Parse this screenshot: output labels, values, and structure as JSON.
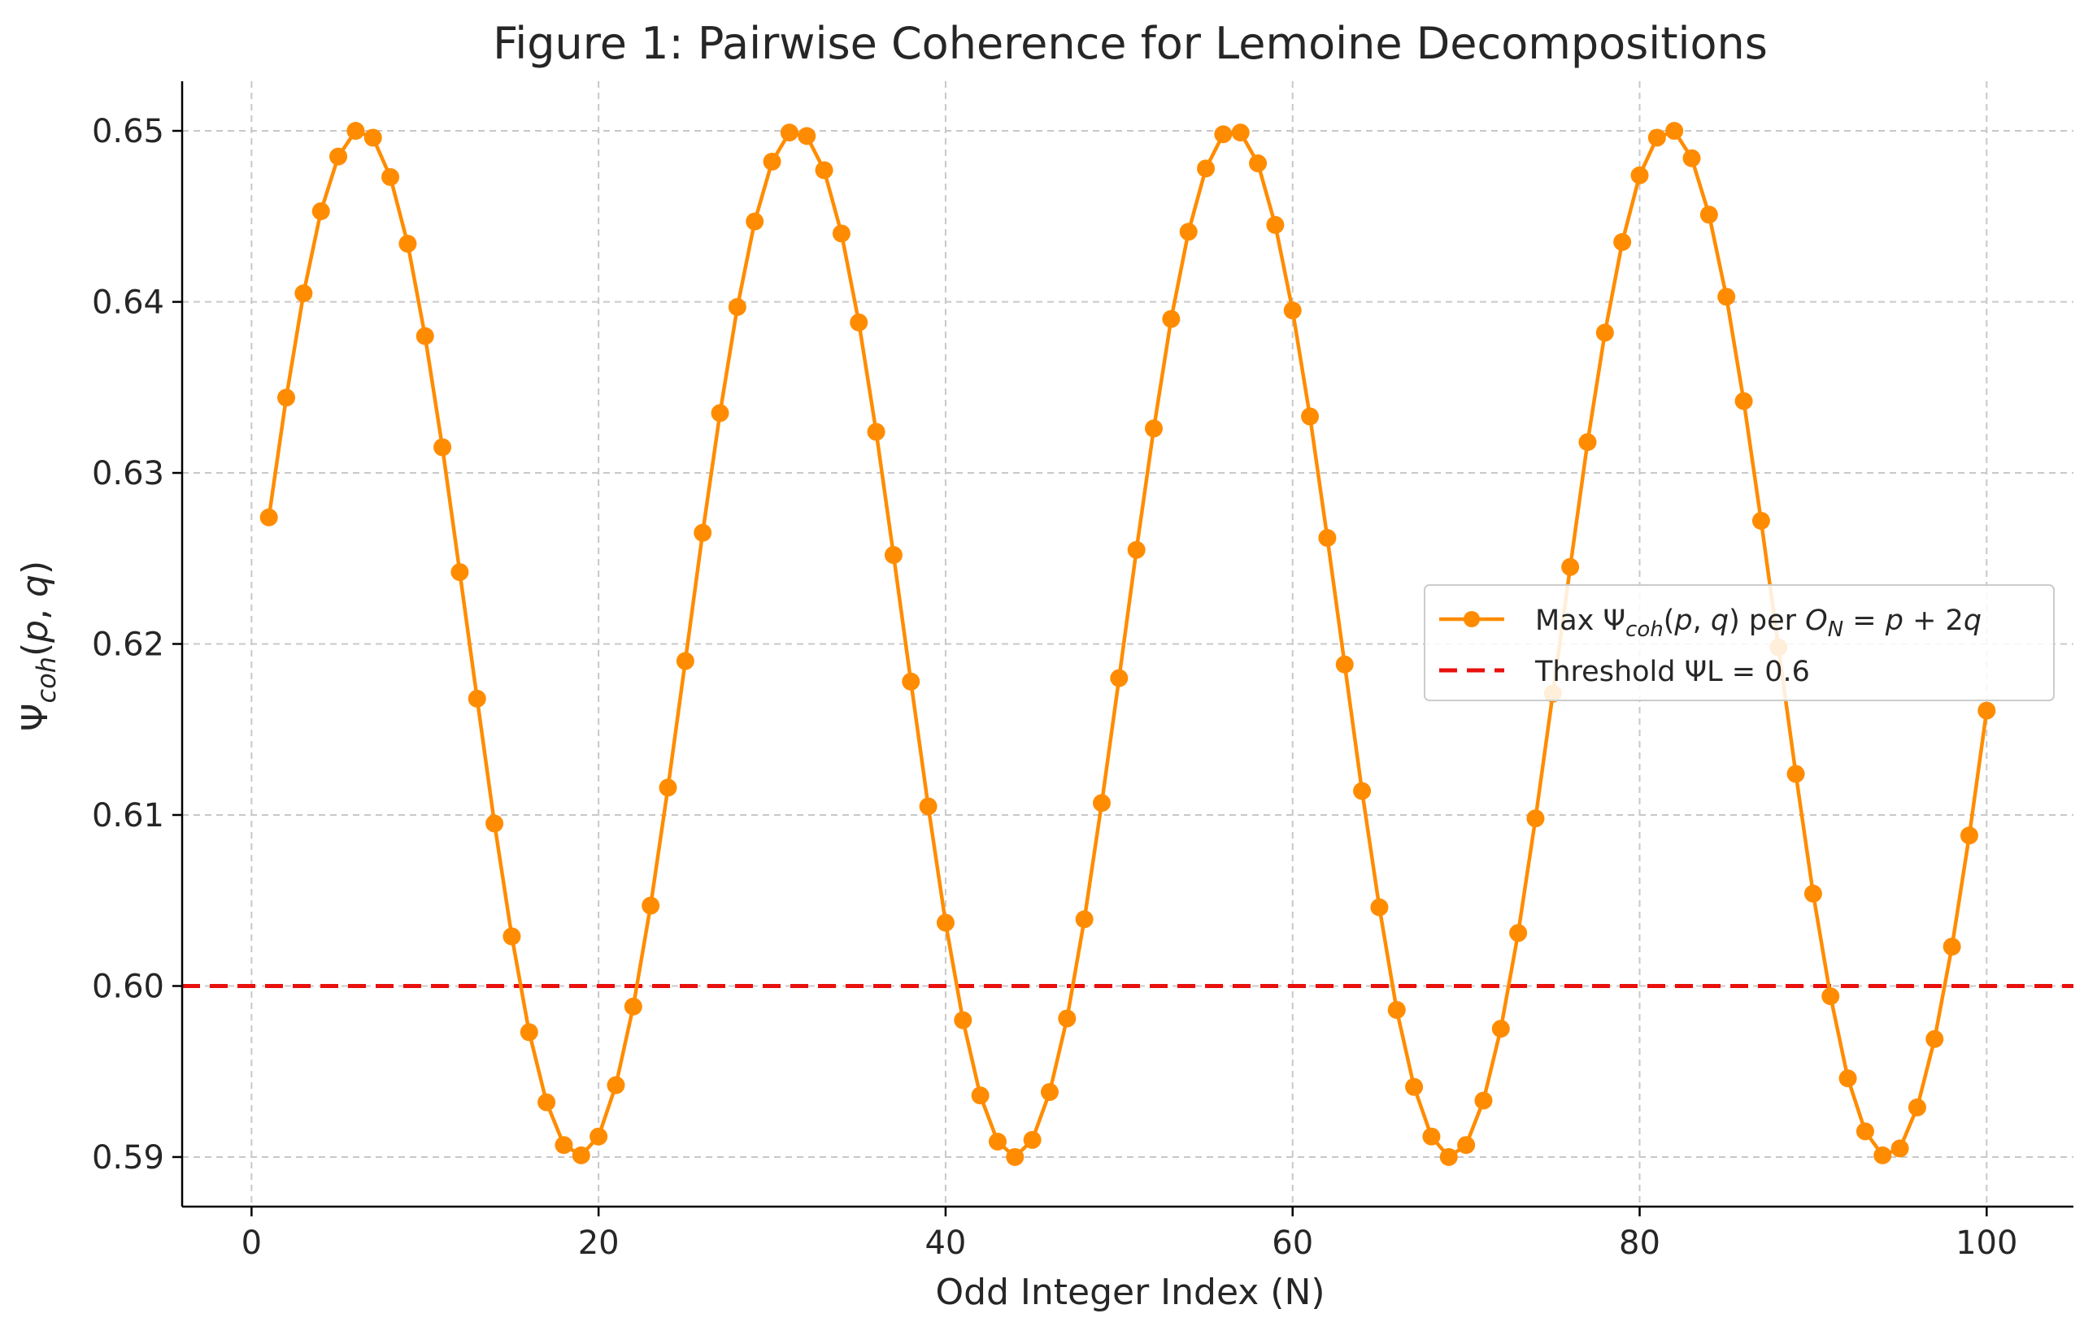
{
  "chart_data": {
    "type": "line",
    "title": "Figure 1: Pairwise Coherence for Lemoine Decompositions",
    "xlabel": "Odd Integer Index (N)",
    "ylabel": "Ψcoh(p, q)",
    "xlim": [
      -4,
      105
    ],
    "ylim": [
      0.5871,
      0.6529
    ],
    "x_ticks": [
      0,
      20,
      40,
      60,
      80,
      100
    ],
    "y_ticks": [
      0.59,
      0.6,
      0.61,
      0.62,
      0.63,
      0.64,
      0.65
    ],
    "x_tick_labels": [
      "0",
      "20",
      "40",
      "60",
      "80",
      "100"
    ],
    "y_tick_labels": [
      "0.59",
      "0.60",
      "0.61",
      "0.62",
      "0.63",
      "0.64",
      "0.65"
    ],
    "grid": true,
    "legend_position": "center-right",
    "series": [
      {
        "name": "Max Ψcoh(p, q) per ON = p + 2q",
        "color": "#ff8c00",
        "marker": "circle",
        "x": [
          1,
          2,
          3,
          4,
          5,
          6,
          7,
          8,
          9,
          10,
          11,
          12,
          13,
          14,
          15,
          16,
          17,
          18,
          19,
          20,
          21,
          22,
          23,
          24,
          25,
          26,
          27,
          28,
          29,
          30,
          31,
          32,
          33,
          34,
          35,
          36,
          37,
          38,
          39,
          40,
          41,
          42,
          43,
          44,
          45,
          46,
          47,
          48,
          49,
          50,
          51,
          52,
          53,
          54,
          55,
          56,
          57,
          58,
          59,
          60,
          61,
          62,
          63,
          64,
          65,
          66,
          67,
          68,
          69,
          70,
          71,
          72,
          73,
          74,
          75,
          76,
          77,
          78,
          79,
          80,
          81,
          82,
          83,
          84,
          85,
          86,
          87,
          88,
          89,
          90,
          91,
          92,
          93,
          94,
          95,
          96,
          97,
          98,
          99,
          100
        ],
        "y": [
          0.6274,
          0.6344,
          0.6405,
          0.6453,
          0.6485,
          0.65,
          0.6496,
          0.6473,
          0.6434,
          0.638,
          0.6315,
          0.6242,
          0.6168,
          0.6095,
          0.6029,
          0.5973,
          0.5932,
          0.5907,
          0.5901,
          0.5912,
          0.5942,
          0.5988,
          0.6047,
          0.6116,
          0.619,
          0.6265,
          0.6335,
          0.6397,
          0.6447,
          0.6482,
          0.6499,
          0.6497,
          0.6477,
          0.644,
          0.6388,
          0.6324,
          0.6252,
          0.6178,
          0.6105,
          0.6037,
          0.598,
          0.5936,
          0.5909,
          0.59,
          0.591,
          0.5938,
          0.5981,
          0.6039,
          0.6107,
          0.618,
          0.6255,
          0.6326,
          0.639,
          0.6441,
          0.6478,
          0.6498,
          0.6499,
          0.6481,
          0.6445,
          0.6395,
          0.6333,
          0.6262,
          0.6188,
          0.6114,
          0.6046,
          0.5986,
          0.5941,
          0.5912,
          0.59,
          0.5907,
          0.5933,
          0.5975,
          0.6031,
          0.6098,
          0.6171,
          0.6245,
          0.6318,
          0.6382,
          0.6435,
          0.6474,
          0.6496,
          0.65,
          0.6484,
          0.6451,
          0.6403,
          0.6342,
          0.6272,
          0.6198,
          0.6124,
          0.6054,
          0.5994,
          0.5946,
          0.5915,
          0.5901,
          0.5905,
          0.5929,
          0.5969,
          0.6023,
          0.6088,
          0.6161
        ]
      },
      {
        "name": "Threshold ΨL = 0.6",
        "color": "#e8100d",
        "style": "dashed",
        "value": 0.6
      }
    ]
  }
}
